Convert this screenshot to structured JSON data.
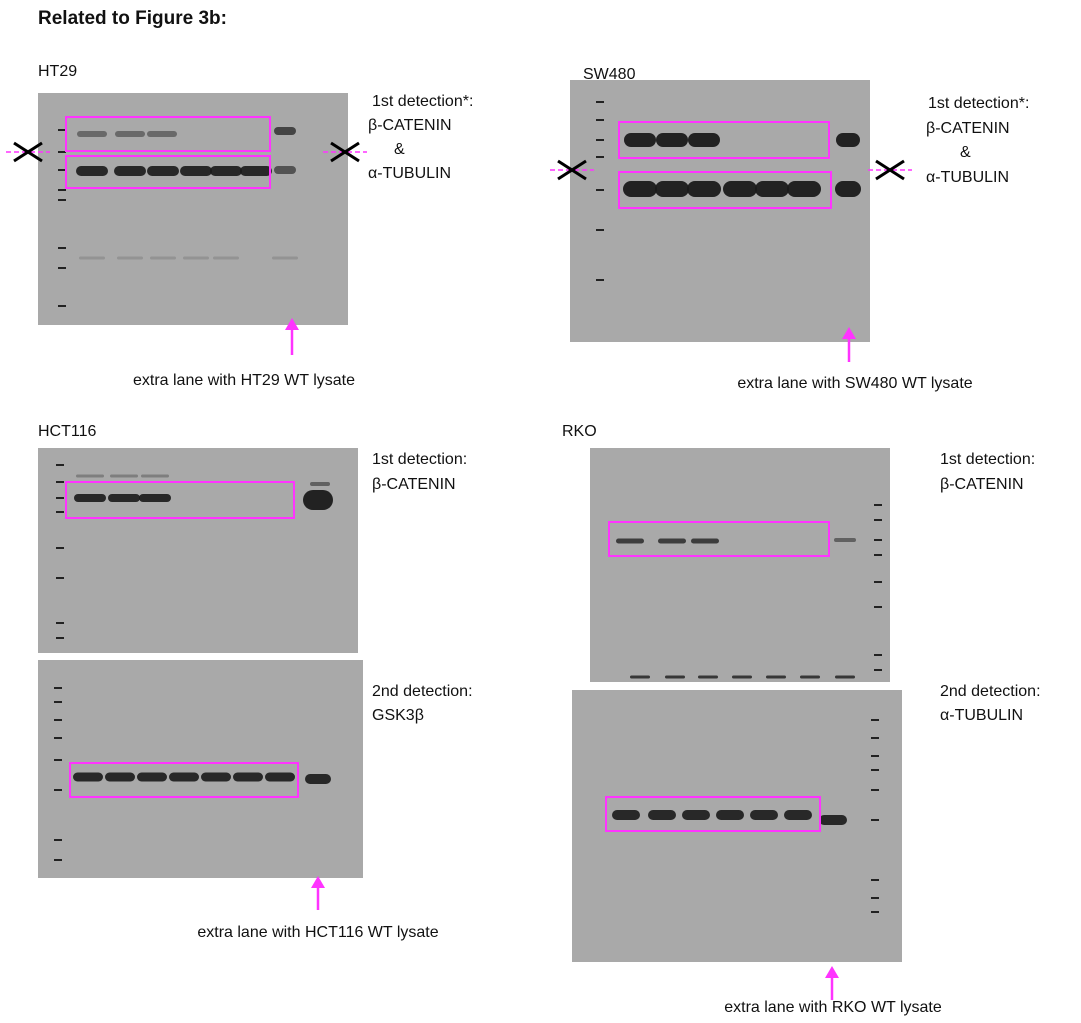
{
  "title": "Related to Figure 3b:",
  "panels": [
    {
      "label": "HT29",
      "detections": [
        {
          "heading": "1st detection*:",
          "lines": [
            "β-CATENIN",
            "&",
            "α-TUBULIN"
          ]
        }
      ],
      "caption": "extra lane with HT29 WT lysate"
    },
    {
      "label": "SW480",
      "detections": [
        {
          "heading": "1st detection*:",
          "lines": [
            "β-CATENIN",
            "&",
            "α-TUBULIN"
          ]
        }
      ],
      "caption": "extra lane with SW480 WT lysate"
    },
    {
      "label": "HCT116",
      "detections": [
        {
          "heading": "1st detection:",
          "lines": [
            "β-CATENIN"
          ]
        },
        {
          "heading": "2nd detection:",
          "lines": [
            "GSK3β"
          ]
        }
      ],
      "caption": "extra lane with HCT116 WT lysate"
    },
    {
      "label": "RKO",
      "detections": [
        {
          "heading": "1st detection:",
          "lines": [
            "β-CATENIN"
          ]
        },
        {
          "heading": "2nd detection:",
          "lines": [
            "α-TUBULIN"
          ]
        }
      ],
      "caption": "extra lane with RKO WT lysate"
    }
  ]
}
